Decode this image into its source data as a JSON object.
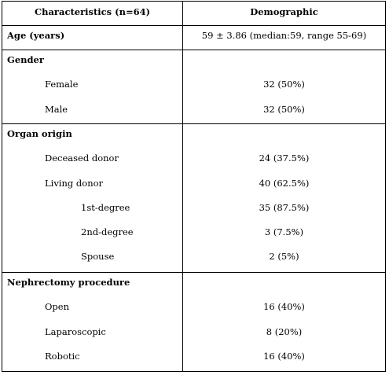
{
  "table": {
    "header": {
      "characteristics": "Characteristics (n=64)",
      "demographic": "Demographic"
    },
    "age": {
      "label": "Age (years)",
      "value": "59 ± 3.86 (median:59, range 55-69)"
    },
    "gender": {
      "label": "Gender",
      "female": {
        "label": "Female",
        "value": "32 (50%)"
      },
      "male": {
        "label": "Male",
        "value": "32 (50%)"
      }
    },
    "organ_origin": {
      "label": "Organ origin",
      "deceased": {
        "label": "Deceased donor",
        "value": "24 (37.5%)"
      },
      "living": {
        "label": "Living donor",
        "value": "40 (62.5%)"
      },
      "first_degree": {
        "label": "1st-degree",
        "value": "35 (87.5%)"
      },
      "second_degree": {
        "label": "2nd-degree",
        "value": "3 (7.5%)"
      },
      "spouse": {
        "label": "Spouse",
        "value": "2 (5%)"
      }
    },
    "nephrectomy": {
      "label": "Nephrectomy procedure",
      "open": {
        "label": "Open",
        "value": "16 (40%)"
      },
      "laparoscopic": {
        "label": "Laparoscopic",
        "value": "8 (20%)"
      },
      "robotic": {
        "label": "Robotic",
        "value": "16 (40%)"
      }
    }
  }
}
